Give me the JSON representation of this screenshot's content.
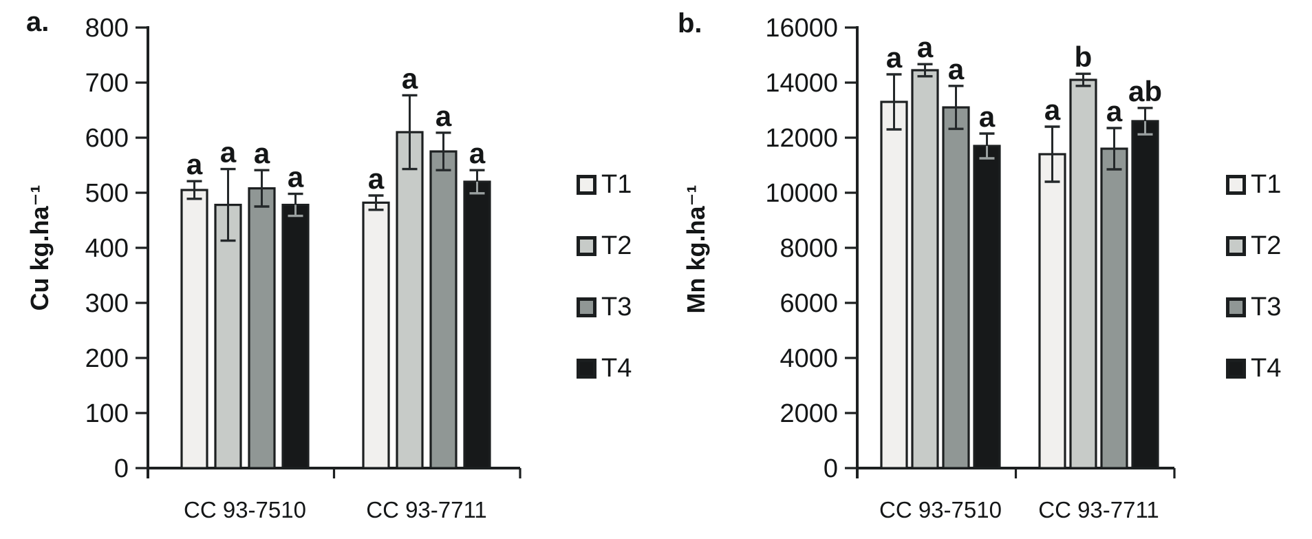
{
  "figure": {
    "background": "#ffffff",
    "axis_color": "#1d2021",
    "error_bar_color": "#24282a",
    "error_bar_on_black_color": "#9aa0a0",
    "text_color": "#141617"
  },
  "legend": {
    "labels": [
      "T1",
      "T2",
      "T3",
      "T4"
    ]
  },
  "chart_data": [
    {
      "type": "bar",
      "panel_label": "a.",
      "title": "",
      "xlabel": "",
      "ylabel": "Cu kg.ha⁻¹",
      "categories": [
        "CC 93-7510",
        "CC 93-7711"
      ],
      "ylim": [
        0,
        800
      ],
      "ytick_interval": 100,
      "ytick_labels": [
        "0",
        "100",
        "200",
        "300",
        "400",
        "500",
        "600",
        "700",
        "800"
      ],
      "grid": false,
      "legend_position": "right",
      "series": [
        {
          "name": "T1",
          "color": "#f1f0ee",
          "values": [
            505,
            482
          ],
          "errors": [
            16,
            13
          ],
          "sig_letters": [
            "a",
            "a"
          ]
        },
        {
          "name": "T2",
          "color": "#c7cbc8",
          "values": [
            478,
            610
          ],
          "errors": [
            65,
            67
          ],
          "sig_letters": [
            "a",
            "a"
          ]
        },
        {
          "name": "T3",
          "color": "#909795",
          "values": [
            508,
            575
          ],
          "errors": [
            33,
            34
          ],
          "sig_letters": [
            "a",
            "a"
          ]
        },
        {
          "name": "T4",
          "color": "#17191a",
          "values": [
            478,
            520
          ],
          "errors": [
            20,
            21
          ],
          "sig_letters": [
            "a",
            "a"
          ]
        }
      ]
    },
    {
      "type": "bar",
      "panel_label": "b.",
      "title": "",
      "xlabel": "",
      "ylabel": "Mn kg.ha⁻¹",
      "categories": [
        "CC 93-7510",
        "CC 93-7711"
      ],
      "ylim": [
        0,
        16000
      ],
      "ytick_interval": 2000,
      "ytick_labels": [
        "0",
        "2000",
        "4000",
        "6000",
        "8000",
        "10000",
        "12000",
        "14000",
        "16000"
      ],
      "grid": false,
      "legend_position": "right",
      "series": [
        {
          "name": "T1",
          "color": "#f1f0ee",
          "values": [
            13300,
            11400
          ],
          "errors": [
            1000,
            1000
          ],
          "sig_letters": [
            "a",
            "a"
          ]
        },
        {
          "name": "T2",
          "color": "#c7cbc8",
          "values": [
            14450,
            14100
          ],
          "errors": [
            220,
            220
          ],
          "sig_letters": [
            "a",
            "b"
          ]
        },
        {
          "name": "T3",
          "color": "#909795",
          "values": [
            13100,
            11600
          ],
          "errors": [
            780,
            750
          ],
          "sig_letters": [
            "a",
            "a"
          ]
        },
        {
          "name": "T4",
          "color": "#17191a",
          "values": [
            11700,
            12600
          ],
          "errors": [
            450,
            480
          ],
          "sig_letters": [
            "a",
            "ab"
          ]
        }
      ]
    }
  ]
}
